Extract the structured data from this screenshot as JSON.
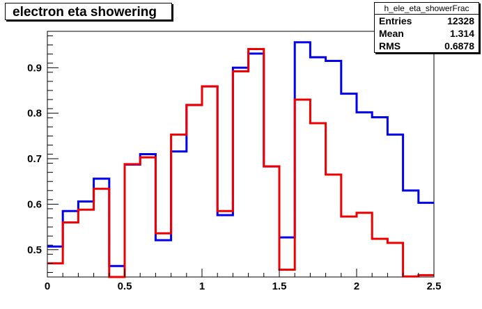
{
  "chart_data": {
    "type": "line",
    "title": "electron eta showering",
    "xlabel": "",
    "ylabel": "",
    "xlim": [
      0,
      2.5
    ],
    "ylim": [
      0.44,
      0.98
    ],
    "x_ticks": [
      "0",
      "0.5",
      "1",
      "1.5",
      "2",
      "2.5"
    ],
    "x_tick_values": [
      0,
      0.5,
      1,
      1.5,
      2,
      2.5
    ],
    "y_ticks": [
      "0.5",
      "0.6",
      "0.7",
      "0.8",
      "0.9"
    ],
    "y_tick_values": [
      0.5,
      0.6,
      0.7,
      0.8,
      0.9
    ],
    "bin_edges": [
      0,
      0.1,
      0.2,
      0.3,
      0.4,
      0.5,
      0.6,
      0.7,
      0.8,
      0.9,
      1.0,
      1.1,
      1.2,
      1.3,
      1.4,
      1.5,
      1.6,
      1.7,
      1.8,
      1.9,
      2.0,
      2.1,
      2.2,
      2.3,
      2.4,
      2.5
    ],
    "series": [
      {
        "color": "#0000ee",
        "values": [
          0.507,
          0.585,
          0.606,
          0.656,
          0.464,
          0.687,
          0.71,
          0.521,
          0.716,
          0.818,
          0.859,
          0.576,
          0.9,
          0.931,
          0.683,
          0.527,
          0.956,
          0.923,
          0.915,
          0.843,
          0.802,
          0.791,
          0.753,
          0.63,
          0.603
        ]
      },
      {
        "color": "#ee0000",
        "values": [
          0.47,
          0.56,
          0.588,
          0.634,
          0.44,
          0.688,
          0.703,
          0.536,
          0.753,
          0.818,
          0.859,
          0.585,
          0.892,
          0.941,
          0.683,
          0.456,
          0.83,
          0.778,
          0.665,
          0.573,
          0.581,
          0.524,
          0.515,
          0.441,
          0.444
        ]
      }
    ]
  },
  "stats": {
    "name": "h_ele_eta_showerFrac",
    "rows": [
      {
        "label": "Entries",
        "value": "12328"
      },
      {
        "label": "Mean",
        "value": "1.314"
      },
      {
        "label": "RMS",
        "value": "0.6878"
      }
    ]
  }
}
